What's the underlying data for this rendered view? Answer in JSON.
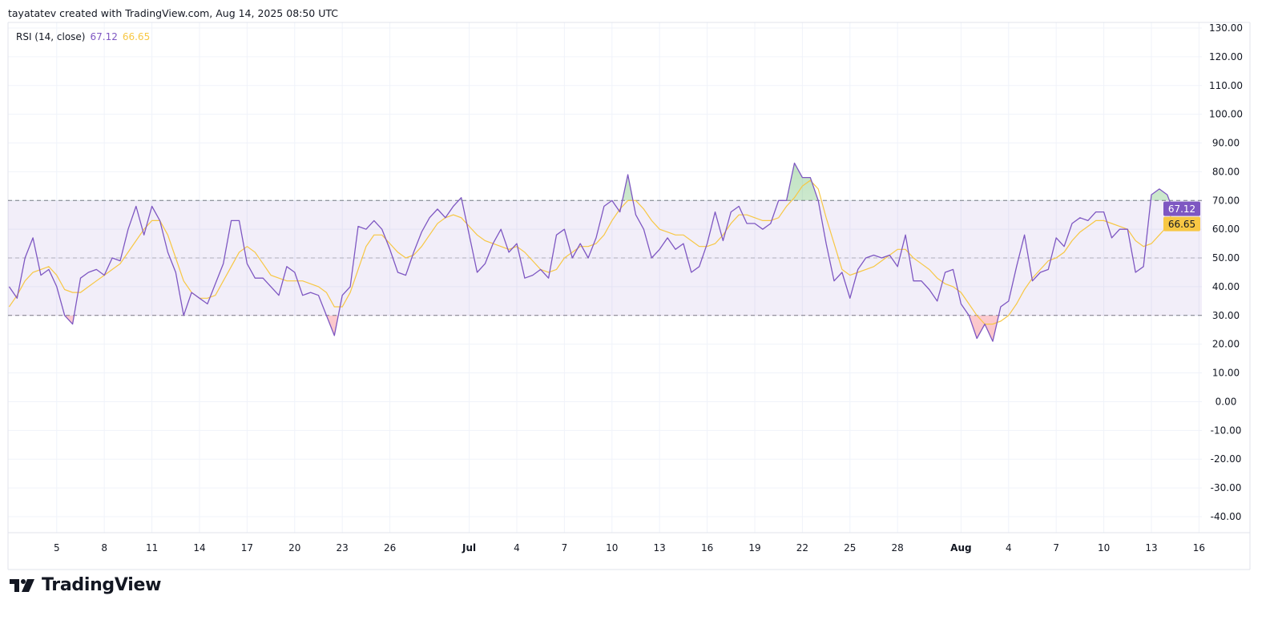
{
  "header": {
    "attribution": "tayatatev created with TradingView.com, Aug 14, 2025 08:50 UTC"
  },
  "legend": {
    "indicator": "RSI (14, close)",
    "rsi_value": "67.12",
    "ma_value": "66.65"
  },
  "logo": {
    "text": "TradingView"
  },
  "colors": {
    "rsi": "#7e57c2",
    "ma": "#f7c744",
    "band": "#7e57c2",
    "overbought_fill": "#4caf50",
    "oversold_fill": "#f23645"
  },
  "chart_data": {
    "type": "line",
    "title": "RSI (14, close)",
    "ylim": [
      -45,
      132
    ],
    "yticks": [
      "130.00",
      "120.00",
      "110.00",
      "100.00",
      "90.00",
      "80.00",
      "70.00",
      "60.00",
      "50.00",
      "40.00",
      "30.00",
      "20.00",
      "10.00",
      "0.00",
      "-10.00",
      "-20.00",
      "-30.00",
      "-40.00"
    ],
    "xticks": [
      {
        "label": "5",
        "date": "2025-06-05"
      },
      {
        "label": "8",
        "date": "2025-06-08"
      },
      {
        "label": "11",
        "date": "2025-06-11"
      },
      {
        "label": "14",
        "date": "2025-06-14"
      },
      {
        "label": "17",
        "date": "2025-06-17"
      },
      {
        "label": "20",
        "date": "2025-06-20"
      },
      {
        "label": "23",
        "date": "2025-06-23"
      },
      {
        "label": "26",
        "date": "2025-06-26"
      },
      {
        "label": "Jul",
        "date": "2025-07-01",
        "bold": true
      },
      {
        "label": "4",
        "date": "2025-07-04"
      },
      {
        "label": "7",
        "date": "2025-07-07"
      },
      {
        "label": "10",
        "date": "2025-07-10"
      },
      {
        "label": "13",
        "date": "2025-07-13"
      },
      {
        "label": "16",
        "date": "2025-07-16"
      },
      {
        "label": "19",
        "date": "2025-07-19"
      },
      {
        "label": "22",
        "date": "2025-07-22"
      },
      {
        "label": "25",
        "date": "2025-07-25"
      },
      {
        "label": "28",
        "date": "2025-07-28"
      },
      {
        "label": "Aug",
        "date": "2025-08-01",
        "bold": true
      },
      {
        "label": "4",
        "date": "2025-08-04"
      },
      {
        "label": "7",
        "date": "2025-08-07"
      },
      {
        "label": "10",
        "date": "2025-08-10"
      },
      {
        "label": "13",
        "date": "2025-08-13"
      },
      {
        "label": "16",
        "date": "2025-08-16"
      }
    ],
    "bands": {
      "upper": 70,
      "middle": 50,
      "lower": 30
    },
    "last_values": {
      "rsi": "67.12",
      "ma": "66.65"
    },
    "grid": true,
    "legend": "top-left",
    "series_names": [
      "RSI",
      "RSI-based MA"
    ],
    "points": [
      {
        "t": "2025-06-02T00",
        "rsi": 40,
        "ma": 33
      },
      {
        "t": "2025-06-02T12",
        "rsi": 36,
        "ma": 37
      },
      {
        "t": "2025-06-03T00",
        "rsi": 50,
        "ma": 42
      },
      {
        "t": "2025-06-03T12",
        "rsi": 57,
        "ma": 45
      },
      {
        "t": "2025-06-04T00",
        "rsi": 44,
        "ma": 46
      },
      {
        "t": "2025-06-04T12",
        "rsi": 46,
        "ma": 47
      },
      {
        "t": "2025-06-05T00",
        "rsi": 40,
        "ma": 44
      },
      {
        "t": "2025-06-05T12",
        "rsi": 30,
        "ma": 39
      },
      {
        "t": "2025-06-06T00",
        "rsi": 27,
        "ma": 38
      },
      {
        "t": "2025-06-06T12",
        "rsi": 43,
        "ma": 38
      },
      {
        "t": "2025-06-07T00",
        "rsi": 45,
        "ma": 40
      },
      {
        "t": "2025-06-07T12",
        "rsi": 46,
        "ma": 42
      },
      {
        "t": "2025-06-08T00",
        "rsi": 44,
        "ma": 44
      },
      {
        "t": "2025-06-08T12",
        "rsi": 50,
        "ma": 46
      },
      {
        "t": "2025-06-09T00",
        "rsi": 49,
        "ma": 48
      },
      {
        "t": "2025-06-09T12",
        "rsi": 60,
        "ma": 52
      },
      {
        "t": "2025-06-10T00",
        "rsi": 68,
        "ma": 56
      },
      {
        "t": "2025-06-10T12",
        "rsi": 58,
        "ma": 60
      },
      {
        "t": "2025-06-11T00",
        "rsi": 68,
        "ma": 63
      },
      {
        "t": "2025-06-11T12",
        "rsi": 63,
        "ma": 63
      },
      {
        "t": "2025-06-12T00",
        "rsi": 52,
        "ma": 58
      },
      {
        "t": "2025-06-12T12",
        "rsi": 45,
        "ma": 50
      },
      {
        "t": "2025-06-13T00",
        "rsi": 30,
        "ma": 42
      },
      {
        "t": "2025-06-13T12",
        "rsi": 38,
        "ma": 38
      },
      {
        "t": "2025-06-14T00",
        "rsi": 36,
        "ma": 36
      },
      {
        "t": "2025-06-14T12",
        "rsi": 34,
        "ma": 36
      },
      {
        "t": "2025-06-15T00",
        "rsi": 41,
        "ma": 37
      },
      {
        "t": "2025-06-15T12",
        "rsi": 48,
        "ma": 42
      },
      {
        "t": "2025-06-16T00",
        "rsi": 63,
        "ma": 47
      },
      {
        "t": "2025-06-16T12",
        "rsi": 63,
        "ma": 52
      },
      {
        "t": "2025-06-17T00",
        "rsi": 48,
        "ma": 54
      },
      {
        "t": "2025-06-17T12",
        "rsi": 43,
        "ma": 52
      },
      {
        "t": "2025-06-18T00",
        "rsi": 43,
        "ma": 48
      },
      {
        "t": "2025-06-18T12",
        "rsi": 40,
        "ma": 44
      },
      {
        "t": "2025-06-19T00",
        "rsi": 37,
        "ma": 43
      },
      {
        "t": "2025-06-19T12",
        "rsi": 47,
        "ma": 42
      },
      {
        "t": "2025-06-20T00",
        "rsi": 45,
        "ma": 42
      },
      {
        "t": "2025-06-20T12",
        "rsi": 37,
        "ma": 42
      },
      {
        "t": "2025-06-21T00",
        "rsi": 38,
        "ma": 41
      },
      {
        "t": "2025-06-21T12",
        "rsi": 37,
        "ma": 40
      },
      {
        "t": "2025-06-22T00",
        "rsi": 30,
        "ma": 38
      },
      {
        "t": "2025-06-22T12",
        "rsi": 23,
        "ma": 33
      },
      {
        "t": "2025-06-23T00",
        "rsi": 37,
        "ma": 33
      },
      {
        "t": "2025-06-23T12",
        "rsi": 40,
        "ma": 38
      },
      {
        "t": "2025-06-24T00",
        "rsi": 61,
        "ma": 46
      },
      {
        "t": "2025-06-24T12",
        "rsi": 60,
        "ma": 54
      },
      {
        "t": "2025-06-25T00",
        "rsi": 63,
        "ma": 58
      },
      {
        "t": "2025-06-25T12",
        "rsi": 60,
        "ma": 58
      },
      {
        "t": "2025-06-26T00",
        "rsi": 53,
        "ma": 55
      },
      {
        "t": "2025-06-26T12",
        "rsi": 45,
        "ma": 52
      },
      {
        "t": "2025-06-27T00",
        "rsi": 44,
        "ma": 50
      },
      {
        "t": "2025-06-27T12",
        "rsi": 52,
        "ma": 51
      },
      {
        "t": "2025-06-28T00",
        "rsi": 59,
        "ma": 54
      },
      {
        "t": "2025-06-28T12",
        "rsi": 64,
        "ma": 58
      },
      {
        "t": "2025-06-29T00",
        "rsi": 67,
        "ma": 62
      },
      {
        "t": "2025-06-29T12",
        "rsi": 64,
        "ma": 64
      },
      {
        "t": "2025-06-30T00",
        "rsi": 68,
        "ma": 65
      },
      {
        "t": "2025-06-30T12",
        "rsi": 71,
        "ma": 64
      },
      {
        "t": "2025-07-01T00",
        "rsi": 58,
        "ma": 61
      },
      {
        "t": "2025-07-01T12",
        "rsi": 45,
        "ma": 58
      },
      {
        "t": "2025-07-02T00",
        "rsi": 48,
        "ma": 56
      },
      {
        "t": "2025-07-02T12",
        "rsi": 55,
        "ma": 55
      },
      {
        "t": "2025-07-03T00",
        "rsi": 60,
        "ma": 54
      },
      {
        "t": "2025-07-03T12",
        "rsi": 52,
        "ma": 53
      },
      {
        "t": "2025-07-04T00",
        "rsi": 55,
        "ma": 54
      },
      {
        "t": "2025-07-04T12",
        "rsi": 43,
        "ma": 52
      },
      {
        "t": "2025-07-05T00",
        "rsi": 44,
        "ma": 49
      },
      {
        "t": "2025-07-05T12",
        "rsi": 46,
        "ma": 46
      },
      {
        "t": "2025-07-06T00",
        "rsi": 43,
        "ma": 45
      },
      {
        "t": "2025-07-06T12",
        "rsi": 58,
        "ma": 46
      },
      {
        "t": "2025-07-07T00",
        "rsi": 60,
        "ma": 50
      },
      {
        "t": "2025-07-07T12",
        "rsi": 50,
        "ma": 52
      },
      {
        "t": "2025-07-08T00",
        "rsi": 55,
        "ma": 54
      },
      {
        "t": "2025-07-08T12",
        "rsi": 50,
        "ma": 54
      },
      {
        "t": "2025-07-09T00",
        "rsi": 57,
        "ma": 55
      },
      {
        "t": "2025-07-09T12",
        "rsi": 68,
        "ma": 58
      },
      {
        "t": "2025-07-10T00",
        "rsi": 70,
        "ma": 63
      },
      {
        "t": "2025-07-10T12",
        "rsi": 66,
        "ma": 67
      },
      {
        "t": "2025-07-11T00",
        "rsi": 79,
        "ma": 70
      },
      {
        "t": "2025-07-11T12",
        "rsi": 65,
        "ma": 70
      },
      {
        "t": "2025-07-12T00",
        "rsi": 60,
        "ma": 67
      },
      {
        "t": "2025-07-12T12",
        "rsi": 50,
        "ma": 63
      },
      {
        "t": "2025-07-13T00",
        "rsi": 53,
        "ma": 60
      },
      {
        "t": "2025-07-13T12",
        "rsi": 57,
        "ma": 59
      },
      {
        "t": "2025-07-14T00",
        "rsi": 53,
        "ma": 58
      },
      {
        "t": "2025-07-14T12",
        "rsi": 55,
        "ma": 58
      },
      {
        "t": "2025-07-15T00",
        "rsi": 45,
        "ma": 56
      },
      {
        "t": "2025-07-15T12",
        "rsi": 47,
        "ma": 54
      },
      {
        "t": "2025-07-16T00",
        "rsi": 55,
        "ma": 54
      },
      {
        "t": "2025-07-16T12",
        "rsi": 66,
        "ma": 55
      },
      {
        "t": "2025-07-17T00",
        "rsi": 56,
        "ma": 58
      },
      {
        "t": "2025-07-17T12",
        "rsi": 66,
        "ma": 62
      },
      {
        "t": "2025-07-18T00",
        "rsi": 68,
        "ma": 65
      },
      {
        "t": "2025-07-18T12",
        "rsi": 62,
        "ma": 65
      },
      {
        "t": "2025-07-19T00",
        "rsi": 62,
        "ma": 64
      },
      {
        "t": "2025-07-19T12",
        "rsi": 60,
        "ma": 63
      },
      {
        "t": "2025-07-20T00",
        "rsi": 62,
        "ma": 63
      },
      {
        "t": "2025-07-20T12",
        "rsi": 70,
        "ma": 64
      },
      {
        "t": "2025-07-21T00",
        "rsi": 70,
        "ma": 68
      },
      {
        "t": "2025-07-21T12",
        "rsi": 83,
        "ma": 71
      },
      {
        "t": "2025-07-22T00",
        "rsi": 78,
        "ma": 75
      },
      {
        "t": "2025-07-22T12",
        "rsi": 78,
        "ma": 77
      },
      {
        "t": "2025-07-23T00",
        "rsi": 70,
        "ma": 74
      },
      {
        "t": "2025-07-23T12",
        "rsi": 55,
        "ma": 64
      },
      {
        "t": "2025-07-24T00",
        "rsi": 42,
        "ma": 55
      },
      {
        "t": "2025-07-24T12",
        "rsi": 45,
        "ma": 46
      },
      {
        "t": "2025-07-25T00",
        "rsi": 36,
        "ma": 44
      },
      {
        "t": "2025-07-25T12",
        "rsi": 46,
        "ma": 45
      },
      {
        "t": "2025-07-26T00",
        "rsi": 50,
        "ma": 46
      },
      {
        "t": "2025-07-26T12",
        "rsi": 51,
        "ma": 47
      },
      {
        "t": "2025-07-27T00",
        "rsi": 50,
        "ma": 49
      },
      {
        "t": "2025-07-27T12",
        "rsi": 51,
        "ma": 51
      },
      {
        "t": "2025-07-28T00",
        "rsi": 47,
        "ma": 53
      },
      {
        "t": "2025-07-28T12",
        "rsi": 58,
        "ma": 53
      },
      {
        "t": "2025-07-29T00",
        "rsi": 42,
        "ma": 50
      },
      {
        "t": "2025-07-29T12",
        "rsi": 42,
        "ma": 48
      },
      {
        "t": "2025-07-30T00",
        "rsi": 39,
        "ma": 46
      },
      {
        "t": "2025-07-30T12",
        "rsi": 35,
        "ma": 43
      },
      {
        "t": "2025-07-31T00",
        "rsi": 45,
        "ma": 41
      },
      {
        "t": "2025-07-31T12",
        "rsi": 46,
        "ma": 40
      },
      {
        "t": "2025-08-01T00",
        "rsi": 34,
        "ma": 38
      },
      {
        "t": "2025-08-01T12",
        "rsi": 30,
        "ma": 34
      },
      {
        "t": "2025-08-02T00",
        "rsi": 22,
        "ma": 30
      },
      {
        "t": "2025-08-02T12",
        "rsi": 27,
        "ma": 27
      },
      {
        "t": "2025-08-03T00",
        "rsi": 21,
        "ma": 27
      },
      {
        "t": "2025-08-03T12",
        "rsi": 33,
        "ma": 28
      },
      {
        "t": "2025-08-04T00",
        "rsi": 35,
        "ma": 30
      },
      {
        "t": "2025-08-04T12",
        "rsi": 47,
        "ma": 34
      },
      {
        "t": "2025-08-05T00",
        "rsi": 58,
        "ma": 39
      },
      {
        "t": "2025-08-05T12",
        "rsi": 42,
        "ma": 43
      },
      {
        "t": "2025-08-06T00",
        "rsi": 45,
        "ma": 46
      },
      {
        "t": "2025-08-06T12",
        "rsi": 46,
        "ma": 49
      },
      {
        "t": "2025-08-07T00",
        "rsi": 57,
        "ma": 50
      },
      {
        "t": "2025-08-07T12",
        "rsi": 54,
        "ma": 52
      },
      {
        "t": "2025-08-08T00",
        "rsi": 62,
        "ma": 56
      },
      {
        "t": "2025-08-08T12",
        "rsi": 64,
        "ma": 59
      },
      {
        "t": "2025-08-09T00",
        "rsi": 63,
        "ma": 61
      },
      {
        "t": "2025-08-09T12",
        "rsi": 66,
        "ma": 63
      },
      {
        "t": "2025-08-10T00",
        "rsi": 66,
        "ma": 63
      },
      {
        "t": "2025-08-10T12",
        "rsi": 57,
        "ma": 62
      },
      {
        "t": "2025-08-11T00",
        "rsi": 60,
        "ma": 61
      },
      {
        "t": "2025-08-11T12",
        "rsi": 60,
        "ma": 60
      },
      {
        "t": "2025-08-12T00",
        "rsi": 45,
        "ma": 56
      },
      {
        "t": "2025-08-12T12",
        "rsi": 47,
        "ma": 54
      },
      {
        "t": "2025-08-13T00",
        "rsi": 72,
        "ma": 55
      },
      {
        "t": "2025-08-13T12",
        "rsi": 74,
        "ma": 58
      },
      {
        "t": "2025-08-14T00",
        "rsi": 72,
        "ma": 61
      },
      {
        "t": "2025-08-14T08",
        "rsi": 67.12,
        "ma": 66.65
      }
    ]
  }
}
